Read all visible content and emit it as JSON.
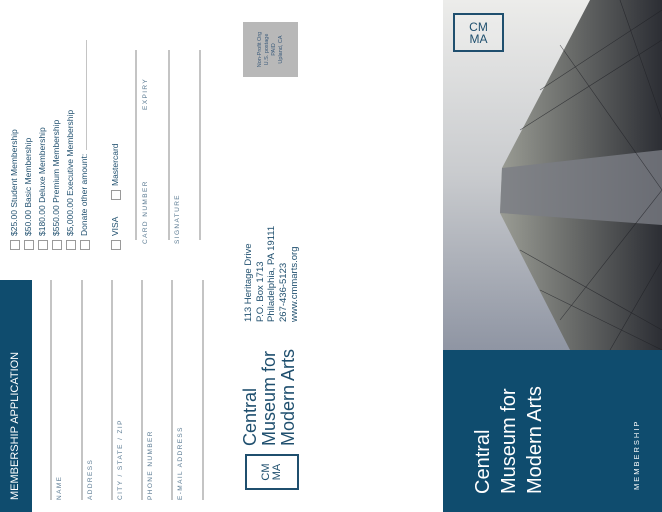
{
  "application": {
    "heading": "MEMBERSHIP APPLICATION",
    "fields": [
      "NAME",
      "ADDRESS",
      "CITY / STATE / ZIP",
      "PHONE NUMBER",
      "E-MAIL ADDRESS"
    ],
    "options": [
      "$25.00 Student Membership",
      "$50.00 Basic Membership",
      "$180.00 Deluxe Membership",
      "$550.00 Premium Membership",
      "$5,000.00 Executive Membership",
      "Donate other amount:"
    ],
    "payment": [
      "VISA",
      "Mastercard"
    ],
    "card_number": "CARD NUMBER",
    "expiry": "EXPIRY",
    "signature": "SIGNATURE"
  },
  "postage": [
    "Non-Profit Org",
    "U.S. postage",
    "PAID",
    "Upland, CA"
  ],
  "museum": {
    "logo": [
      "CM",
      "MA"
    ],
    "name": [
      "Central",
      "Museum for",
      "Modern Arts"
    ],
    "address": [
      "113 Heritage Drive",
      "P.O. Box 1713",
      "Philadelphia, PA 19111",
      "267-436-5123",
      "www.cmmarts.org"
    ]
  },
  "cover": {
    "logo": [
      "CM",
      "MA"
    ],
    "title": [
      "Central",
      "Museum for",
      "Modern Arts"
    ],
    "subtitle": "MEMBERSHIP"
  },
  "colors": {
    "brand": "#0f4c6e",
    "text": "#1f4f6e",
    "postage": "#b8b8b8"
  }
}
